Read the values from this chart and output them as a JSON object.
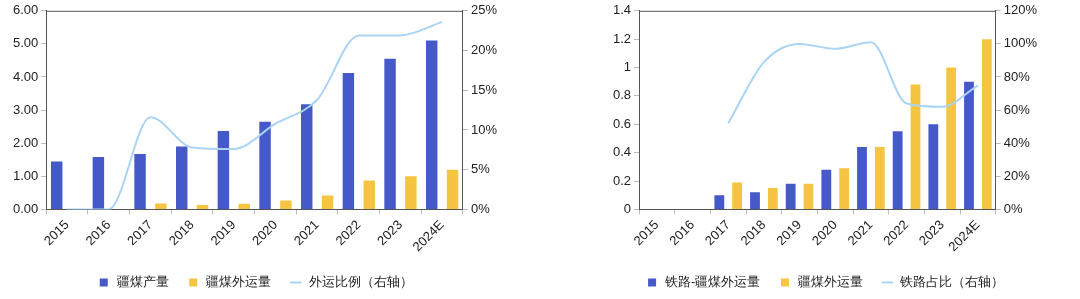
{
  "chart_data": [
    {
      "type": "bar",
      "categories": [
        "2015",
        "2016",
        "2017",
        "2018",
        "2019",
        "2020",
        "2021",
        "2022",
        "2023",
        "2024E"
      ],
      "series": [
        {
          "name": "疆煤产量",
          "color": "#4559c9",
          "values": [
            1.45,
            1.58,
            1.67,
            1.9,
            2.37,
            2.65,
            3.18,
            4.12,
            4.55,
            5.1
          ]
        },
        {
          "name": "疆煤外运量",
          "color": "#f5c542",
          "values": [
            null,
            null,
            0.18,
            0.13,
            0.17,
            0.27,
            0.42,
            0.87,
            1.0,
            1.2
          ]
        },
        {
          "name": "外运比例（右轴）",
          "type": "line",
          "axis": "y2",
          "color": "#a9d4f5",
          "values": [
            0,
            0,
            11.6,
            7.8,
            7.6,
            10.8,
            13.8,
            21.9,
            21.9,
            23.6
          ]
        }
      ],
      "ylim": [
        0,
        6
      ],
      "yticks": [
        {
          "value": 0,
          "label": "0.00"
        },
        {
          "value": 1,
          "label": "1.00"
        },
        {
          "value": 2,
          "label": "2.00"
        },
        {
          "value": 3,
          "label": "3.00"
        },
        {
          "value": 4,
          "label": "4.00"
        },
        {
          "value": 5,
          "label": "5.00"
        },
        {
          "value": 6,
          "label": "6.00"
        }
      ],
      "y2lim": [
        0,
        25
      ],
      "y2ticks": [
        {
          "value": 0,
          "label": "0%"
        },
        {
          "value": 5,
          "label": "5%"
        },
        {
          "value": 10,
          "label": "10%"
        },
        {
          "value": 15,
          "label": "15%"
        },
        {
          "value": 20,
          "label": "20%"
        },
        {
          "value": 25,
          "label": "25%"
        }
      ],
      "grid": false,
      "legend": "bottom",
      "marker": "none"
    },
    {
      "type": "bar",
      "categories": [
        "2015",
        "2016",
        "2017",
        "2018",
        "2019",
        "2020",
        "2021",
        "2022",
        "2023",
        "2024E"
      ],
      "series": [
        {
          "name": "铁路-疆煤外运量",
          "color": "#4559c9",
          "values": [
            null,
            null,
            0.1,
            0.12,
            0.18,
            0.28,
            0.44,
            0.55,
            0.6,
            0.9
          ]
        },
        {
          "name": "疆煤外运量",
          "color": "#f5c542",
          "values": [
            null,
            null,
            0.19,
            0.15,
            0.18,
            0.29,
            0.44,
            0.88,
            1.0,
            1.2
          ]
        },
        {
          "name": "铁路占比（右轴）",
          "type": "line",
          "axis": "y2",
          "color": "#a9d4f5",
          "values": [
            null,
            null,
            52,
            89,
            100,
            97,
            101,
            64,
            62,
            75
          ]
        }
      ],
      "ylim": [
        0,
        1.4
      ],
      "yticks": [
        0,
        0.2,
        0.4,
        0.6,
        0.8,
        1,
        1.2,
        1.4
      ],
      "y2lim": [
        0,
        120
      ],
      "y2ticks": [
        {
          "value": 0,
          "label": "0%"
        },
        {
          "value": 20,
          "label": "20%"
        },
        {
          "value": 40,
          "label": "40%"
        },
        {
          "value": 60,
          "label": "60%"
        },
        {
          "value": 80,
          "label": "80%"
        },
        {
          "value": 100,
          "label": "100%"
        },
        {
          "value": 120,
          "label": "120%"
        }
      ],
      "grid": false,
      "legend": "bottom",
      "marker": "none"
    }
  ]
}
